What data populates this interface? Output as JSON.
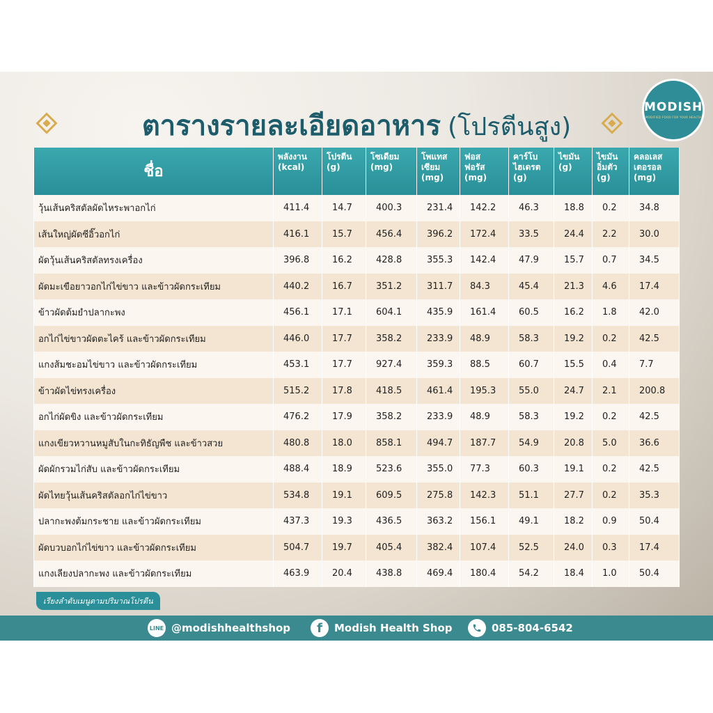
{
  "header": {
    "title": "ตารางรายละเอียดอาหาร",
    "subtitle": "(โปรตีนสูง)",
    "logo": "MODISH",
    "logo_tagline": "MODIFIED FOOD FOR YOUR HEALTH"
  },
  "table": {
    "columns": [
      [
        "ชื่อ"
      ],
      [
        "พลังงาน",
        "(kcal)"
      ],
      [
        "โปรตีน",
        "(g)"
      ],
      [
        "โซเดียม",
        "(mg)"
      ],
      [
        "โพแทส",
        "เซียม",
        "(mg)"
      ],
      [
        "ฟอส",
        "ฟอรัส",
        "(mg)"
      ],
      [
        "คาร์โบ",
        "ไฮเดรต",
        "(g)"
      ],
      [
        "ไขมัน",
        "(g)"
      ],
      [
        "ไขมัน",
        "อิ่มตัว",
        "(g)"
      ],
      [
        "คลอเลส",
        "เตอรอล",
        "(mg)"
      ]
    ],
    "rows": [
      [
        "วุ้นเส้นคริสตัลผัดไหระพาอกไก่",
        "411.4",
        "14.7",
        "400.3",
        "231.4",
        "142.2",
        "46.3",
        "18.8",
        "0.2",
        "34.8"
      ],
      [
        "เส้นใหญ่ผัดซีอิ๊วอกไก่",
        "416.1",
        "15.7",
        "456.4",
        "396.2",
        "172.4",
        "33.5",
        "24.4",
        "2.2",
        "30.0"
      ],
      [
        "ผัดวุ้นเส้นคริสตัลทรงเครื่อง",
        "396.8",
        "16.2",
        "428.8",
        "355.3",
        "142.4",
        "47.9",
        "15.7",
        "0.7",
        "34.5"
      ],
      [
        "ผัดมะเขือยาวอกไก่ไข่ขาว และข้าวผัดกระเทียม",
        "440.2",
        "16.7",
        "351.2",
        "311.7",
        "84.3",
        "45.4",
        "21.3",
        "4.6",
        "17.4"
      ],
      [
        "ข้าวผัดต้มยำปลากะพง",
        "456.1",
        "17.1",
        "604.1",
        "435.9",
        "161.4",
        "60.5",
        "16.2",
        "1.8",
        "42.0"
      ],
      [
        "อกไก่ไข่ขาวผัดตะไคร้ และข้าวผัดกระเทียม",
        "446.0",
        "17.7",
        "358.2",
        "233.9",
        "48.9",
        "58.3",
        "19.2",
        "0.2",
        "42.5"
      ],
      [
        "แกงส้มชะอมไข่ขาว และข้าวผัดกระเทียม",
        "453.1",
        "17.7",
        "927.4",
        "359.3",
        "88.5",
        "60.7",
        "15.5",
        "0.4",
        "7.7"
      ],
      [
        "ข้าวผัดไข่ทรงเครื่อง",
        "515.2",
        "17.8",
        "418.5",
        "461.4",
        "195.3",
        "55.0",
        "24.7",
        "2.1",
        "200.8"
      ],
      [
        "อกไก่ผัดขิง และข้าวผัดกระเทียม",
        "476.2",
        "17.9",
        "358.2",
        "233.9",
        "48.9",
        "58.3",
        "19.2",
        "0.2",
        "42.5"
      ],
      [
        "แกงเขียวหวานหมูสับในกะทิธัญพืช และข้าวสวย",
        "480.8",
        "18.0",
        "858.1",
        "494.7",
        "187.7",
        "54.9",
        "20.8",
        "5.0",
        "36.6"
      ],
      [
        "ผัดผักรวมไก่สับ และข้าวผัดกระเทียม",
        "488.4",
        "18.9",
        "523.6",
        "355.0",
        "77.3",
        "60.3",
        "19.1",
        "0.2",
        "42.5"
      ],
      [
        "ผัดไทยวุ้นเส้นคริสตัลอกไก่ไข่ขาว",
        "534.8",
        "19.1",
        "609.5",
        "275.8",
        "142.3",
        "51.1",
        "27.7",
        "0.2",
        "35.3"
      ],
      [
        "ปลากะพงต้มกระชาย และข้าวผัดกระเทียม",
        "437.3",
        "19.3",
        "436.5",
        "363.2",
        "156.1",
        "49.1",
        "18.2",
        "0.9",
        "50.4"
      ],
      [
        "ผัดบวบอกไก่ไข่ขาว และข้าวผัดกระเทียม",
        "504.7",
        "19.7",
        "405.4",
        "382.4",
        "107.4",
        "52.5",
        "24.0",
        "0.3",
        "17.4"
      ],
      [
        "แกงเลียงปลากะพง และข้าวผัดกระเทียม",
        "463.9",
        "20.4",
        "438.8",
        "469.4",
        "180.4",
        "54.2",
        "18.4",
        "1.0",
        "50.4"
      ]
    ]
  },
  "note": "เรียงลำดับเมนูตามปริมาณโปรตีน",
  "footer": {
    "line_icon": "LINE",
    "line": "@modishhealthshop",
    "facebook_icon": "f",
    "facebook": "Modish Health Shop",
    "phone": "085-804-6542"
  }
}
